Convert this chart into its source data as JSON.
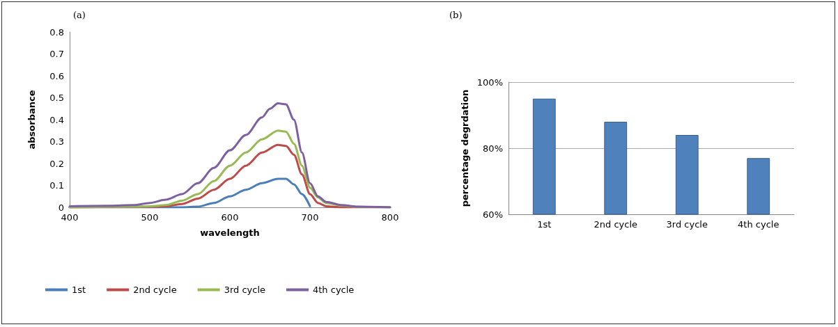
{
  "chart_data": [
    {
      "type": "line",
      "title": "(a)",
      "xlabel": "wavelength",
      "ylabel": "absorbance",
      "xlim": [
        400,
        800
      ],
      "xticks": [
        400,
        500,
        600,
        700,
        800
      ],
      "ylim": [
        0,
        0.8
      ],
      "yticks": [
        0,
        0.1,
        0.2,
        0.3,
        0.4,
        0.5,
        0.6,
        0.7,
        0.8
      ],
      "legend": "bottom",
      "marker": "none",
      "line_style": "solid",
      "grid": false,
      "series": [
        {
          "name": "1st",
          "color": "#4a7ebb",
          "x": [
            400,
            540,
            560,
            580,
            600,
            620,
            640,
            660,
            670,
            680,
            690,
            700
          ],
          "values": [
            0,
            0,
            0.003,
            0.02,
            0.05,
            0.08,
            0.11,
            0.13,
            0.13,
            0.105,
            0.06,
            0.005
          ]
        },
        {
          "name": "2nd cycle",
          "color": "#be4b48",
          "x": [
            400,
            500,
            520,
            540,
            560,
            580,
            600,
            620,
            640,
            660,
            670,
            680,
            690,
            700,
            710,
            720,
            740,
            800
          ],
          "values": [
            0,
            0.002,
            0.005,
            0.015,
            0.04,
            0.08,
            0.13,
            0.19,
            0.25,
            0.285,
            0.28,
            0.24,
            0.15,
            0.06,
            0.02,
            0.005,
            0,
            0
          ]
        },
        {
          "name": "3rd cycle",
          "color": "#98b954",
          "x": [
            400,
            480,
            500,
            520,
            540,
            560,
            580,
            600,
            620,
            640,
            660,
            670,
            680,
            690,
            700,
            710,
            720,
            740,
            760,
            800
          ],
          "values": [
            0,
            0.003,
            0.005,
            0.01,
            0.03,
            0.06,
            0.12,
            0.19,
            0.25,
            0.31,
            0.35,
            0.345,
            0.29,
            0.19,
            0.09,
            0.045,
            0.02,
            0.008,
            0.002,
            0
          ]
        },
        {
          "name": "4th cycle",
          "color": "#7d60a0",
          "x": [
            400,
            450,
            480,
            500,
            520,
            540,
            560,
            580,
            600,
            620,
            640,
            650,
            660,
            670,
            680,
            690,
            700,
            710,
            720,
            740,
            760,
            800
          ],
          "values": [
            0.005,
            0.007,
            0.01,
            0.02,
            0.035,
            0.06,
            0.11,
            0.18,
            0.26,
            0.33,
            0.41,
            0.45,
            0.475,
            0.47,
            0.4,
            0.25,
            0.11,
            0.05,
            0.025,
            0.01,
            0.003,
            0
          ]
        }
      ]
    },
    {
      "type": "bar",
      "title": "(b)",
      "ylabel": "percentage degrdation",
      "categories": [
        "1st",
        "2nd cycle",
        "3rd cycle",
        "4th cycle"
      ],
      "values": [
        95,
        88,
        84,
        77
      ],
      "color": "#4f81bd",
      "ylim": [
        60,
        100
      ],
      "yticks": [
        {
          "value": 60,
          "label": "60%"
        },
        {
          "value": 80,
          "label": "80%"
        },
        {
          "value": 100,
          "label": "100%"
        }
      ],
      "grid": "y"
    }
  ]
}
